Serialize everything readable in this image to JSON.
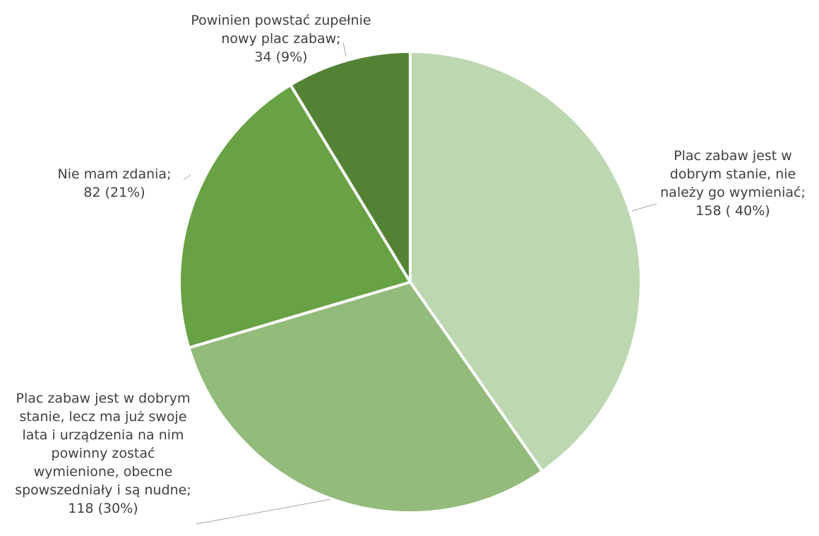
{
  "chart_data": {
    "type": "pie",
    "slices": [
      {
        "label": "Plac zabaw jest w\ndobrym stanie, nie\nnależy go wymieniać;",
        "value_text": "158 ( 40%)",
        "value": 158,
        "percent": 40,
        "color": "#bdd7b0"
      },
      {
        "label": "Plac zabaw jest w dobrym\nstanie, lecz ma już swoje\nlata i urządzenia na nim\npowinny zostać\nwymienione, obecne\nspowszedniały i są nudne;",
        "value_text": "118 (30%)",
        "value": 118,
        "percent": 30,
        "color": "#93bb7b"
      },
      {
        "label": "Nie mam zdania;",
        "value_text": "82 (21%)",
        "value": 82,
        "percent": 21,
        "color": "#68a244"
      },
      {
        "label": "Powinien powstać zupełnie\nnowy plac zabaw;",
        "value_text": "34 (9%)",
        "value": 34,
        "percent": 9,
        "color": "#548235"
      }
    ]
  }
}
